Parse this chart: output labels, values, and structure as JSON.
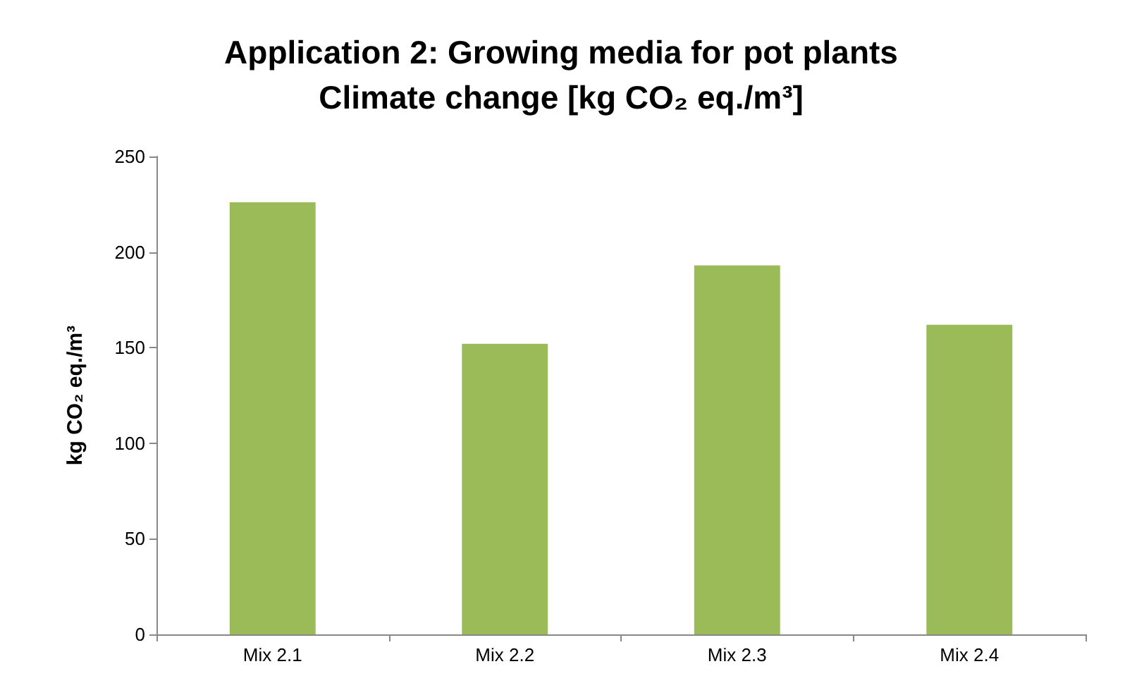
{
  "chart_data": {
    "type": "bar",
    "title": "Application 2: Growing media for pot plants\nClimate change [kg CO₂ eq./m³]",
    "ylabel": "kg CO₂ eq./m³",
    "categories": [
      "Mix 2.1",
      "Mix 2.2",
      "Mix 2.3",
      "Mix 2.4"
    ],
    "values": [
      226,
      152,
      193,
      162
    ],
    "color": "#9bbb59",
    "ylim": [
      0,
      250
    ],
    "yticks": [
      0,
      50,
      100,
      150,
      200,
      250
    ],
    "grid": false
  }
}
